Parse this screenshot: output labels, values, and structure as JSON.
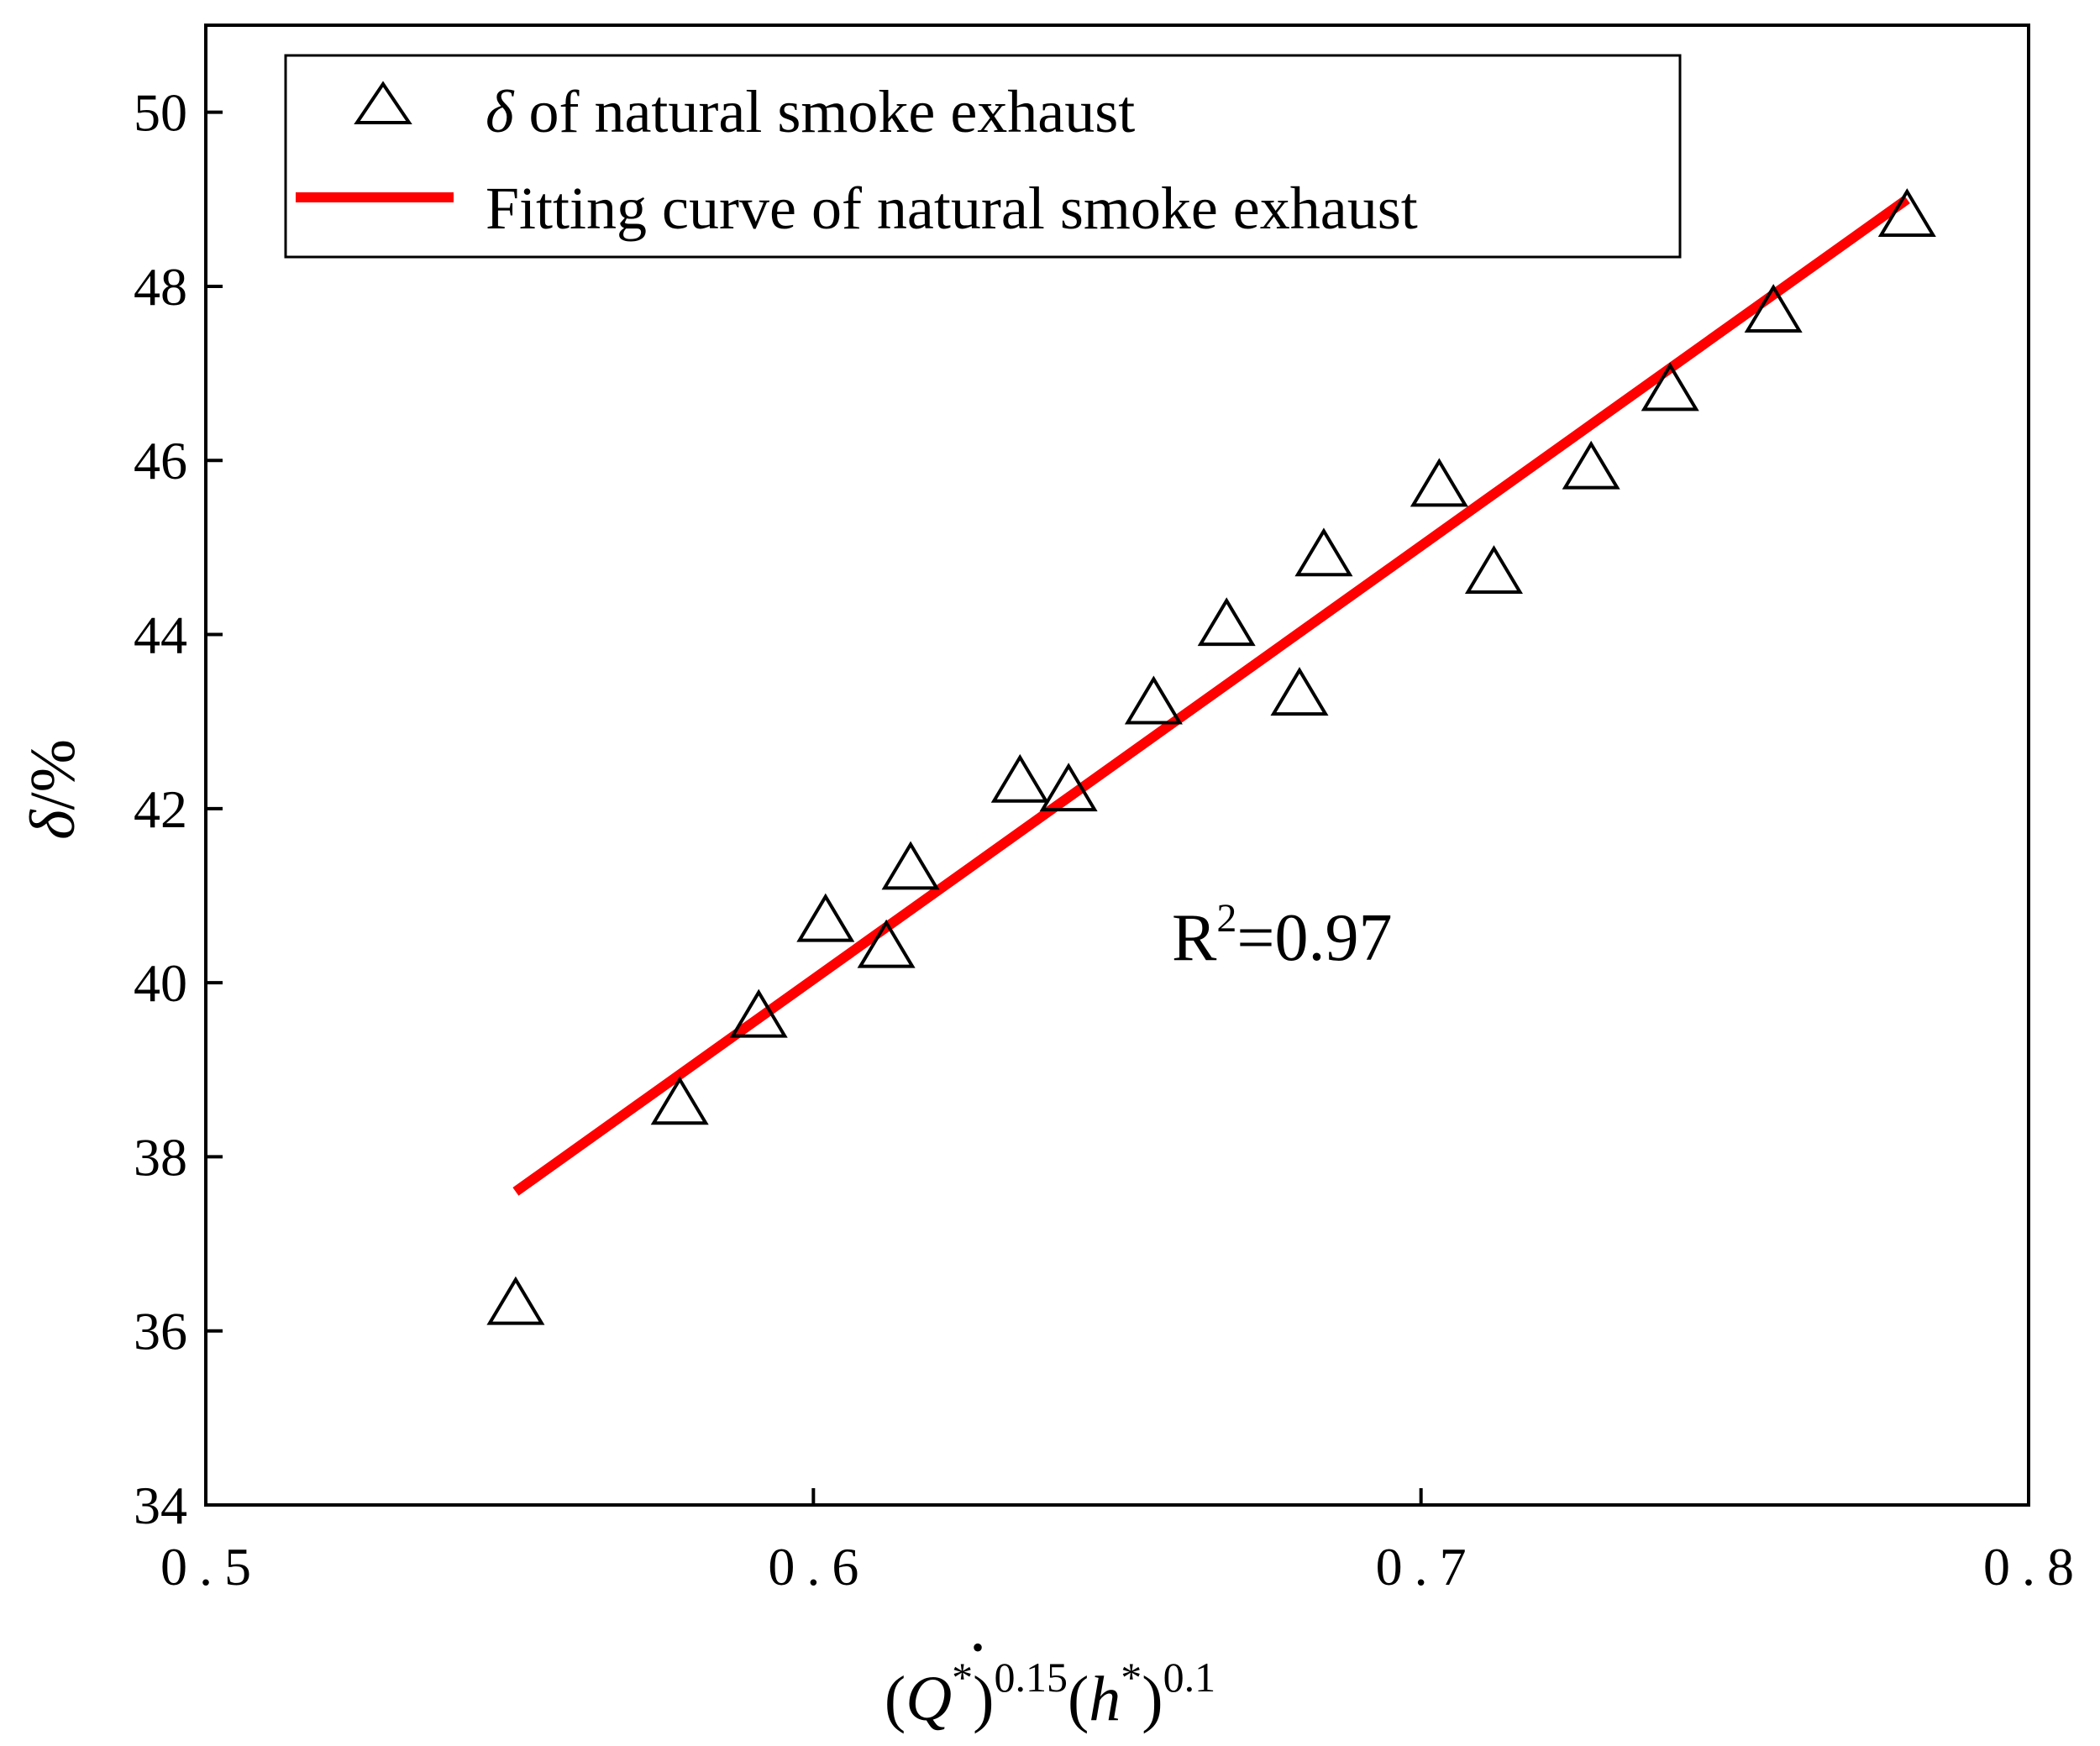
{
  "chart_data": {
    "type": "scatter",
    "xlabel": {
      "open_paren": "(",
      "q_symbol": "Q",
      "q_dot": "•",
      "q_star": "*",
      "close_paren_1": ")",
      "exp_1": "0.15",
      "open_paren_2": "(",
      "h_symbol": "h",
      "h_star": "*",
      "close_paren_2": ")",
      "exp_2": "0.1"
    },
    "ylabel": {
      "symbol": "δ",
      "unit": "/%"
    },
    "xlim": [
      0.5,
      0.8
    ],
    "ylim": [
      34,
      51
    ],
    "x_ticks": [
      "0.5",
      "0.6",
      "0.7",
      "0.8"
    ],
    "y_ticks": [
      "34",
      "36",
      "38",
      "40",
      "42",
      "44",
      "46",
      "48",
      "50"
    ],
    "legend_position": "top-left",
    "legend": {
      "points_symbol": "δ",
      "points_label": " of natural smoke exhaust",
      "fit_label": "Fitting curve of natural smoke exhaust"
    },
    "annotation": {
      "r_letter": "R",
      "r_exponent": "2",
      "r_value": "=0.97"
    },
    "series": [
      {
        "kind": "points",
        "marker": "open-triangle",
        "x": [
          0.551,
          0.578,
          0.591,
          0.602,
          0.612,
          0.616,
          0.634,
          0.642,
          0.656,
          0.668,
          0.68,
          0.684,
          0.703,
          0.712,
          0.728,
          0.741,
          0.758,
          0.78
        ],
        "y": [
          36.3,
          38.6,
          39.6,
          40.7,
          40.4,
          41.3,
          42.3,
          42.2,
          43.2,
          44.1,
          43.3,
          44.9,
          45.7,
          44.7,
          45.9,
          46.8,
          47.7,
          48.8
        ]
      },
      {
        "kind": "fit-line",
        "color": "#ff0000",
        "x": [
          0.551,
          0.78
        ],
        "y": [
          37.6,
          49.0
        ]
      }
    ],
    "colors": {
      "fit_line": "#ff0000",
      "markers": "#000000",
      "axes": "#000000"
    }
  }
}
